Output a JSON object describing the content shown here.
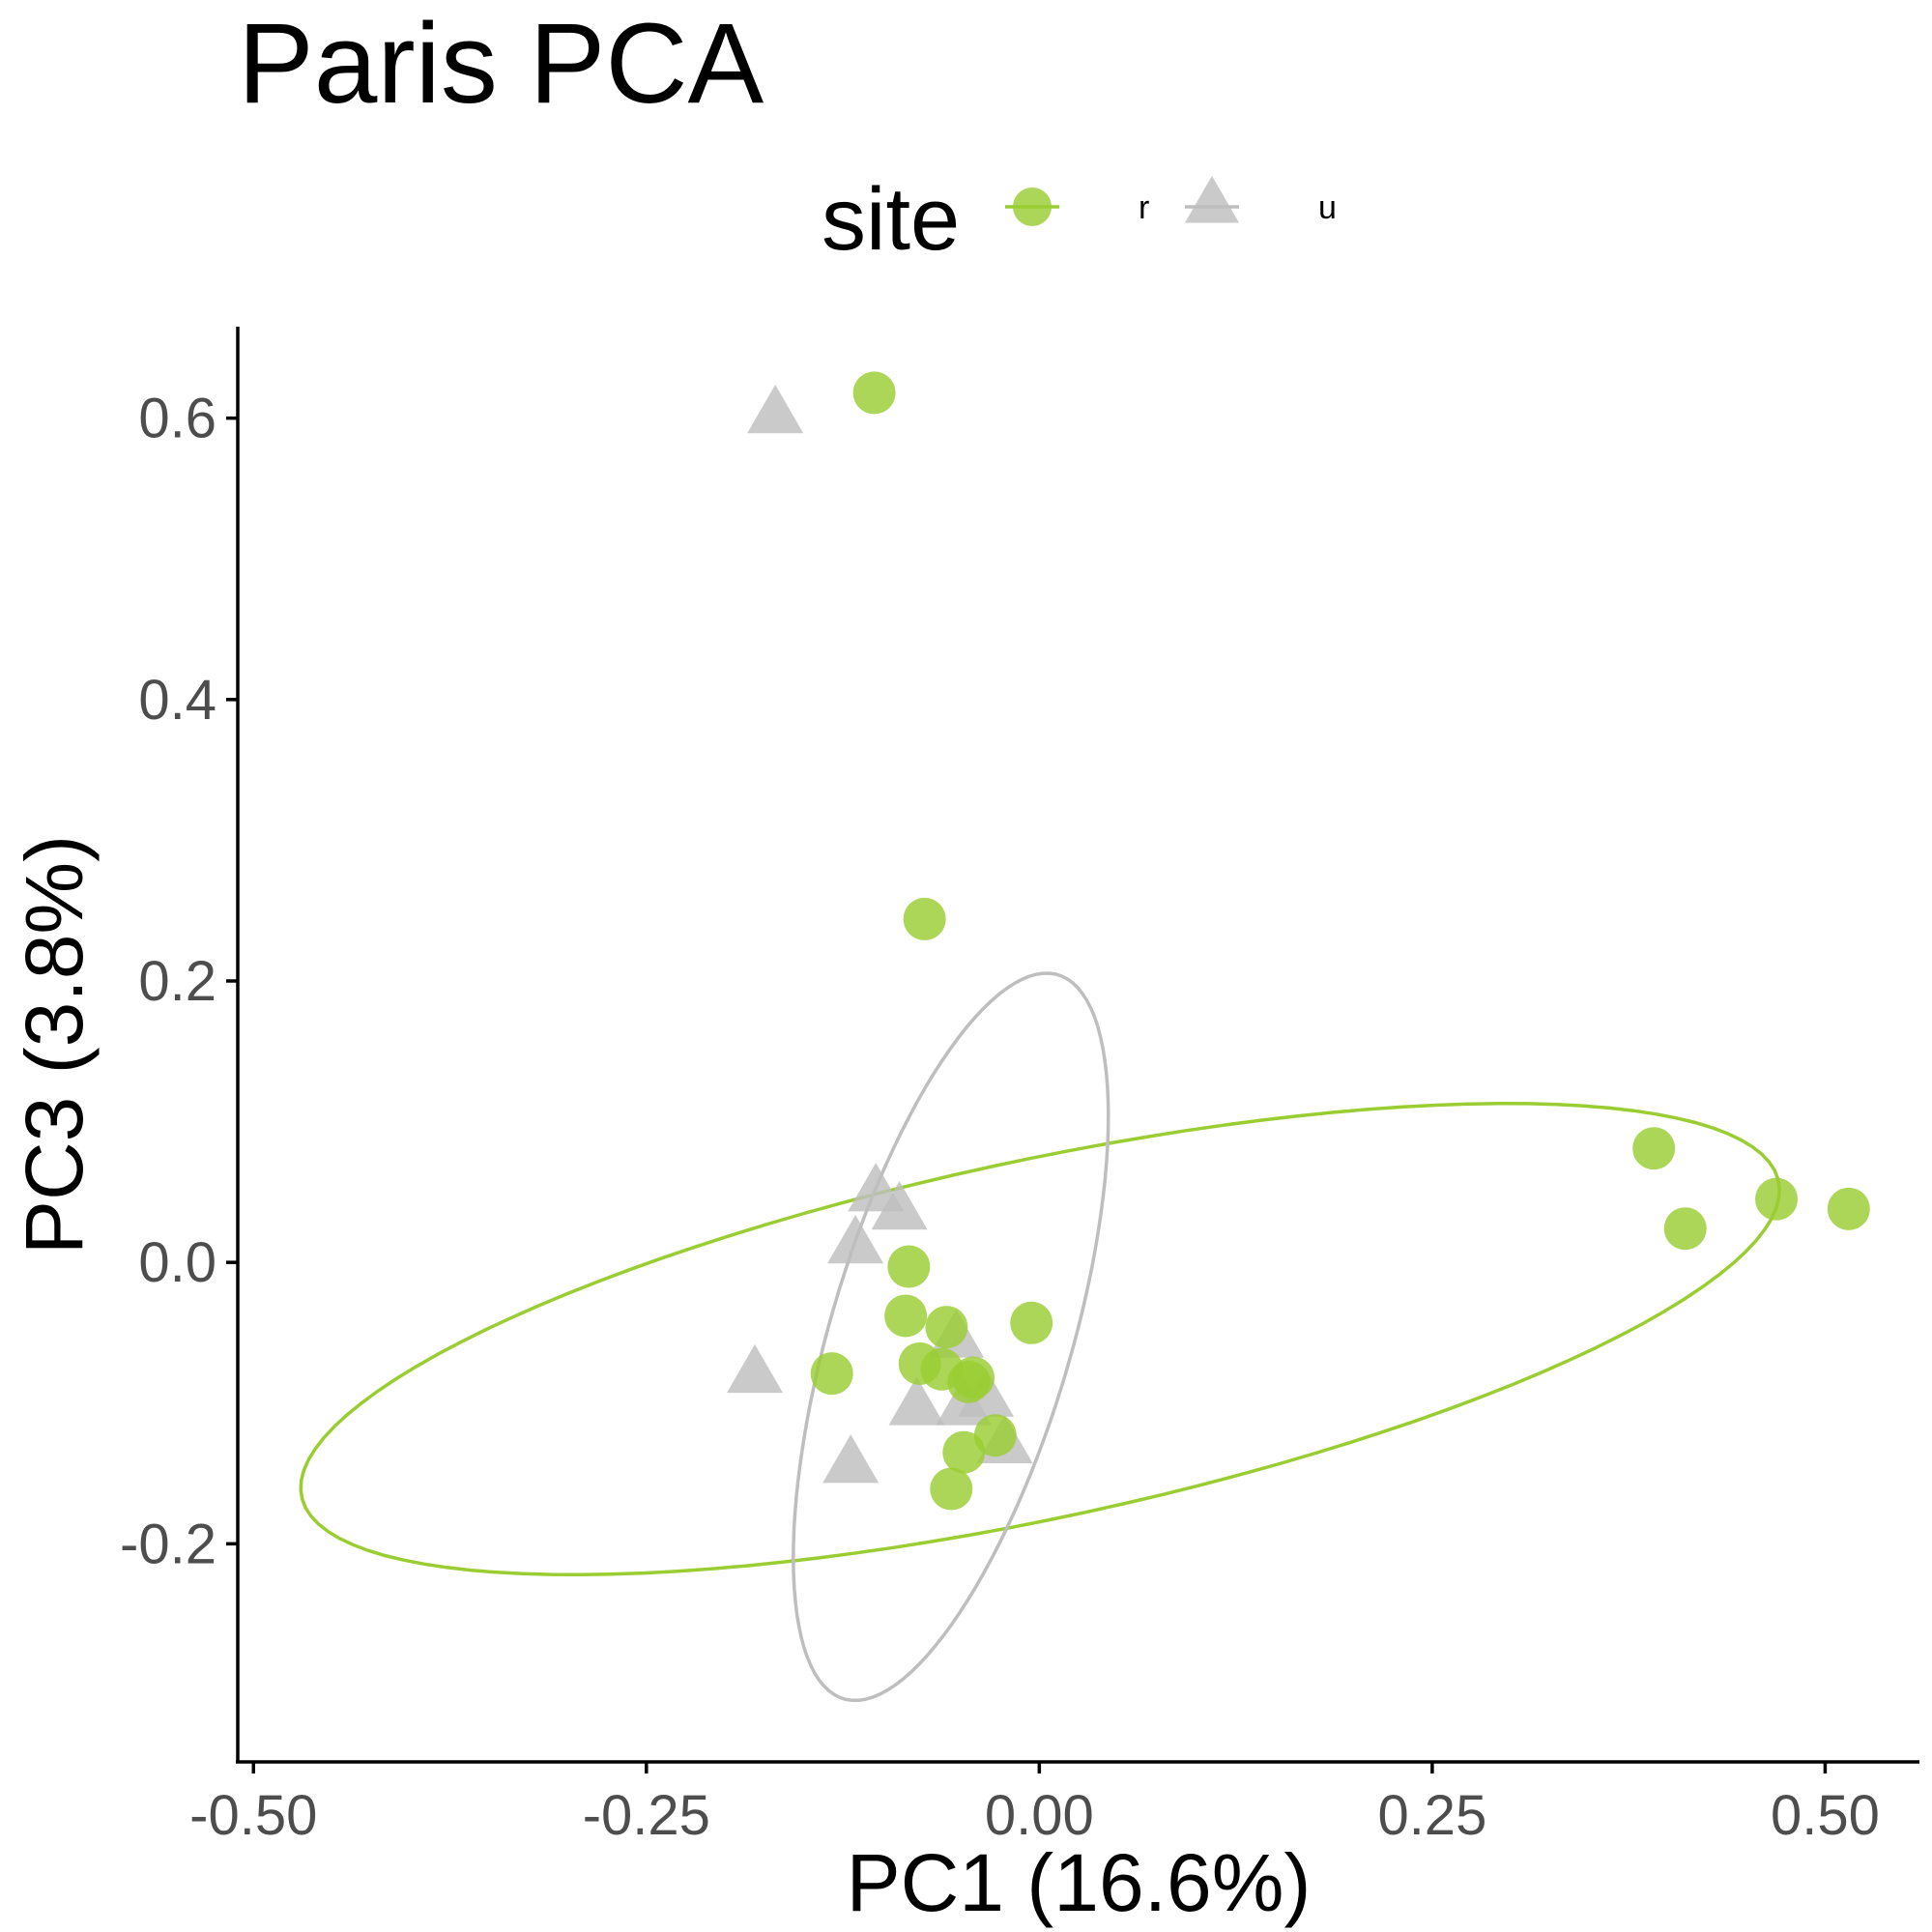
{
  "chart_data": {
    "type": "scatter",
    "title": "Paris PCA",
    "xlabel": "PC1 (16.6%)",
    "ylabel": "PC3 (3.8%)",
    "xlim": [
      -0.51,
      0.56
    ],
    "ylim": [
      -0.355,
      0.665
    ],
    "x_ticks": [
      -0.5,
      -0.25,
      0.0,
      0.25,
      0.5
    ],
    "x_tick_labels": [
      "-0.50",
      "-0.25",
      "0.00",
      "0.25",
      "0.50"
    ],
    "y_ticks": [
      -0.2,
      0.0,
      0.2,
      0.4,
      0.6
    ],
    "y_tick_labels": [
      "-0.2",
      "0.0",
      "0.2",
      "0.4",
      "0.6"
    ],
    "grid": false,
    "legend": {
      "title": "site",
      "position": "top",
      "entries": [
        "r",
        "u"
      ]
    },
    "series": [
      {
        "name": "r",
        "color": "#9acd32",
        "marker": "circle",
        "points": [
          {
            "x": -0.105,
            "y": 0.618
          },
          {
            "x": -0.073,
            "y": 0.244
          },
          {
            "x": 0.391,
            "y": 0.081
          },
          {
            "x": 0.469,
            "y": 0.045
          },
          {
            "x": 0.515,
            "y": 0.038
          },
          {
            "x": 0.411,
            "y": 0.024
          },
          {
            "x": -0.083,
            "y": -0.003
          },
          {
            "x": -0.085,
            "y": -0.038
          },
          {
            "x": -0.005,
            "y": -0.043
          },
          {
            "x": -0.059,
            "y": -0.046
          },
          {
            "x": -0.076,
            "y": -0.072
          },
          {
            "x": -0.062,
            "y": -0.076
          },
          {
            "x": -0.042,
            "y": -0.082
          },
          {
            "x": -0.045,
            "y": -0.085
          },
          {
            "x": -0.132,
            "y": -0.079
          },
          {
            "x": -0.028,
            "y": -0.123
          },
          {
            "x": -0.048,
            "y": -0.135
          },
          {
            "x": -0.056,
            "y": -0.161
          }
        ],
        "ellipse": {
          "cx": 0.0005,
          "cy": -0.0545,
          "rx_axis": [
            0.4695,
            0.1137
          ],
          "ry_axis": [
            -0.0297,
            0.1229
          ]
        }
      },
      {
        "name": "u",
        "color": "#bebebe",
        "marker": "triangle",
        "points": [
          {
            "x": -0.168,
            "y": 0.601
          },
          {
            "x": -0.104,
            "y": 0.048
          },
          {
            "x": -0.089,
            "y": 0.035
          },
          {
            "x": -0.117,
            "y": 0.011
          },
          {
            "x": -0.053,
            "y": -0.056
          },
          {
            "x": -0.181,
            "y": -0.081
          },
          {
            "x": -0.078,
            "y": -0.104
          },
          {
            "x": -0.048,
            "y": -0.104
          },
          {
            "x": -0.034,
            "y": -0.098
          },
          {
            "x": -0.022,
            "y": -0.131
          },
          {
            "x": -0.12,
            "y": -0.145
          }
        ],
        "ellipse": {
          "cx": -0.0563,
          "cy": -0.0529,
          "rx_axis": [
            0.0667,
            0.2577
          ],
          "ry_axis": [
            -0.0748,
            0.0194
          ]
        }
      }
    ]
  }
}
